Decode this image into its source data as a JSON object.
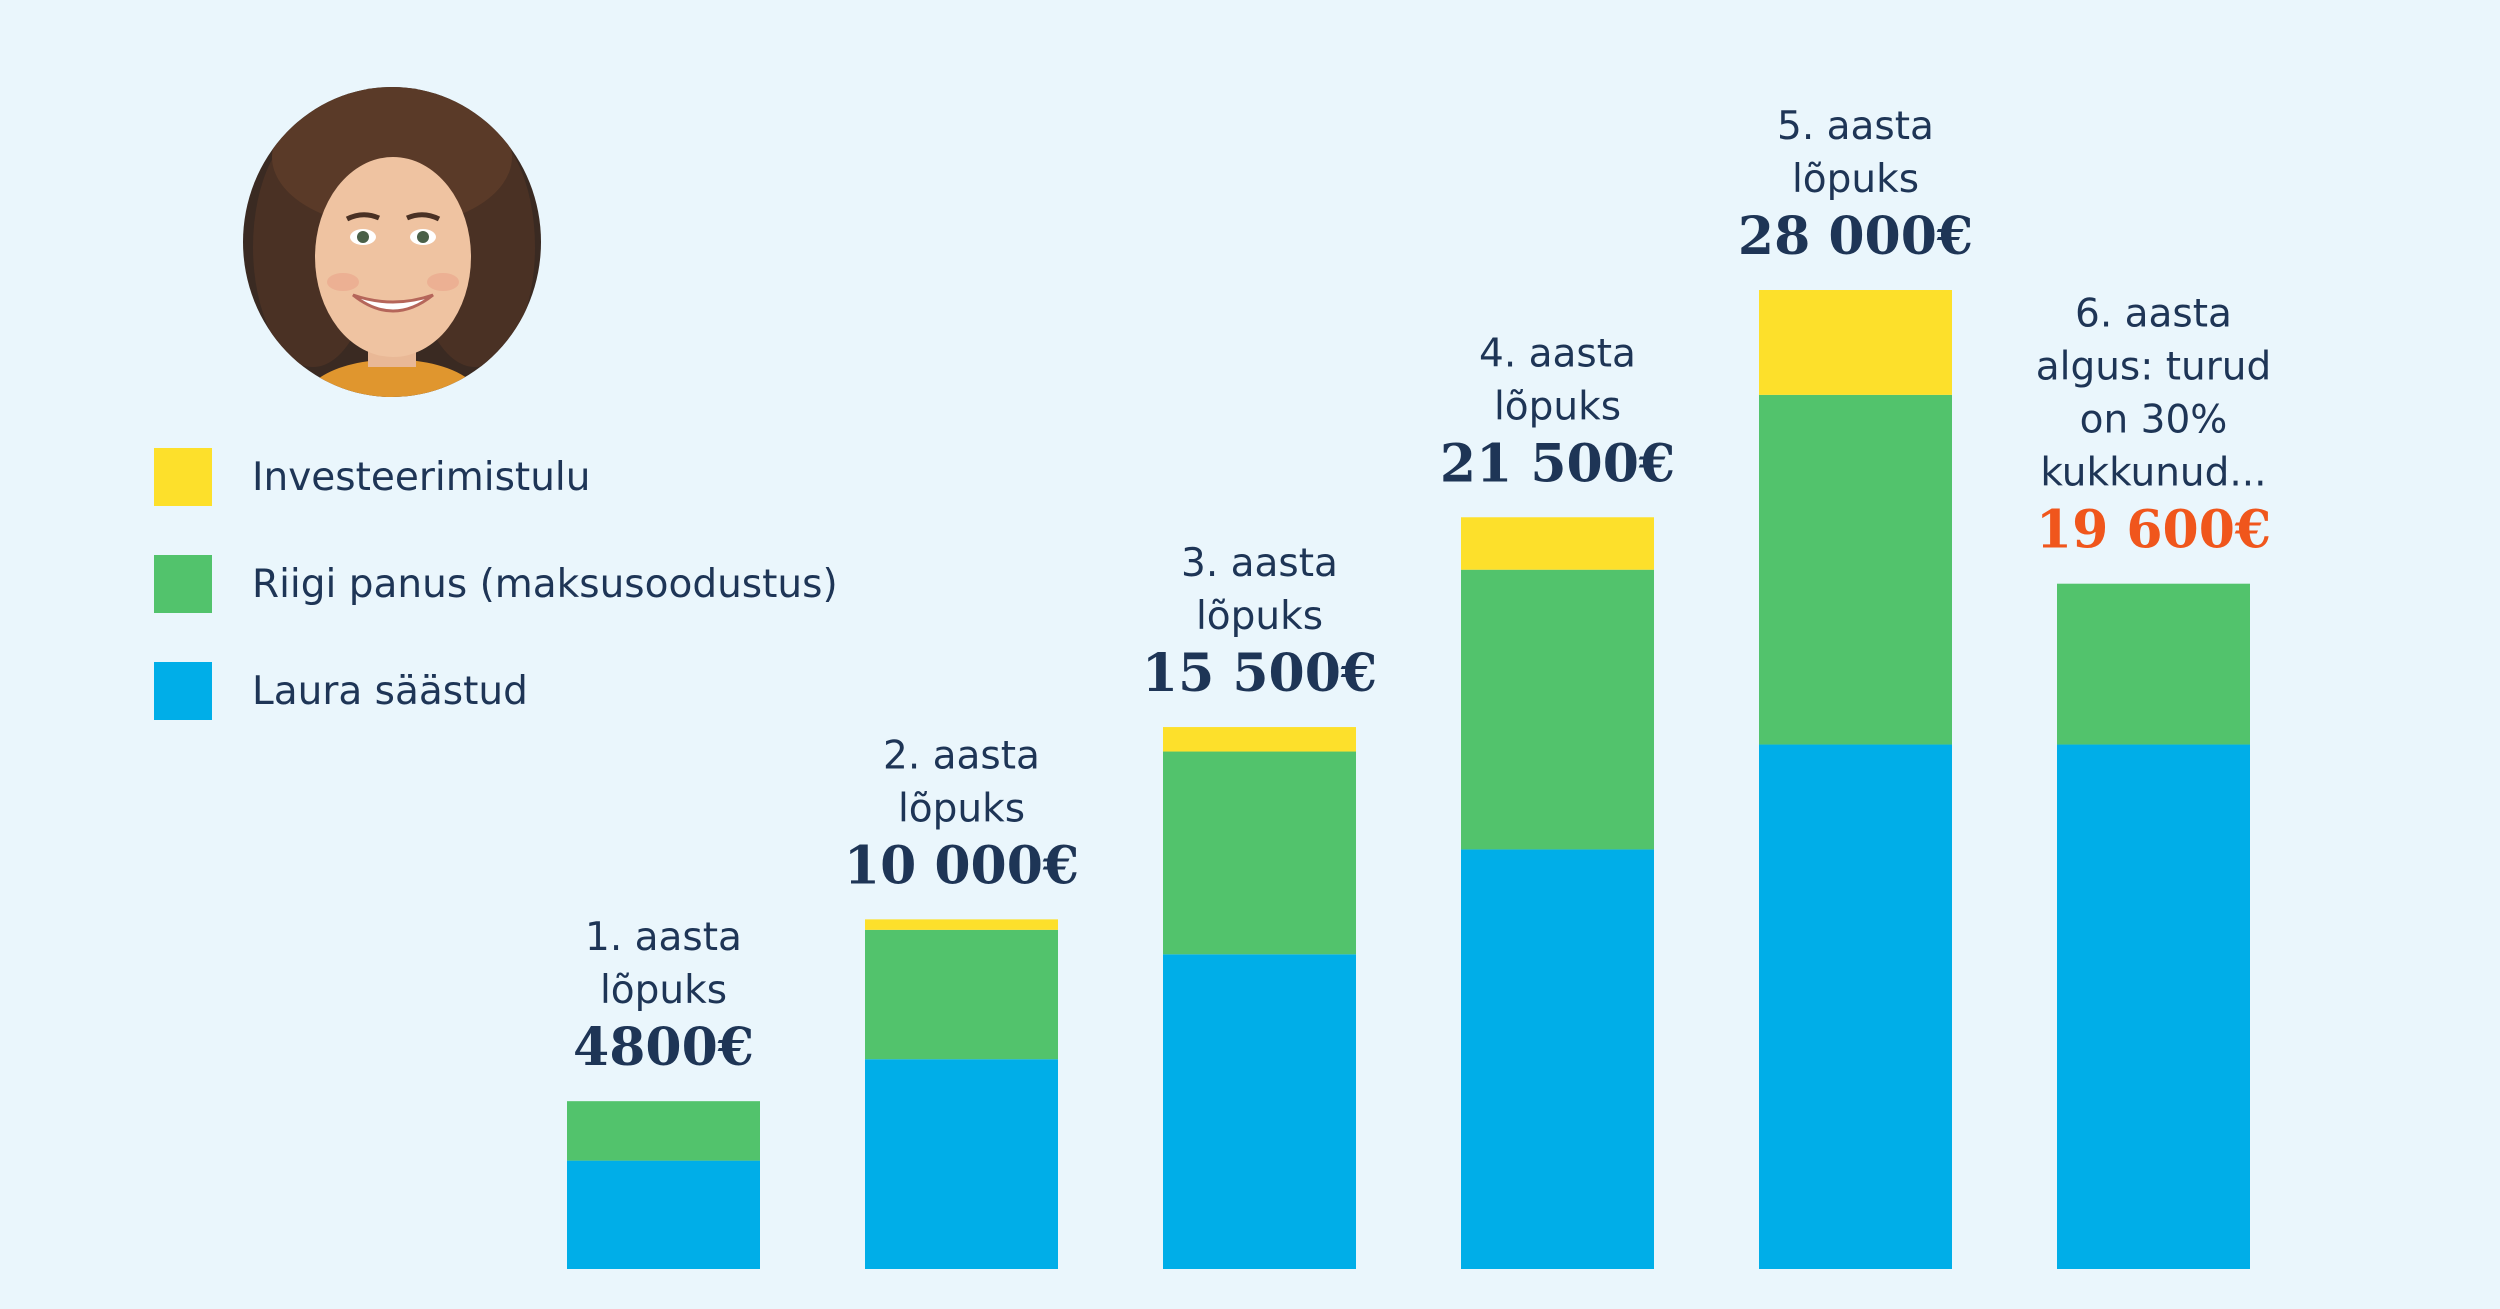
{
  "colors": {
    "background": "#eaf6fc",
    "savings": "#00aee8",
    "state": "#52c36c",
    "investment": "#fde02b",
    "text": "#1e3556",
    "highlight": "#f0561c"
  },
  "avatar": {
    "icon": "woman-portrait-photo"
  },
  "legend": {
    "items": [
      {
        "label": "Investeerimistulu",
        "color": "#fde02b"
      },
      {
        "label": "Riigi panus (maksusoodustus)",
        "color": "#52c36c"
      },
      {
        "label": "Laura säästud",
        "color": "#00aee8"
      }
    ]
  },
  "chart_data": {
    "type": "bar",
    "stacked": true,
    "categories": [
      "1. aasta lõpuks",
      "2. aasta lõpuks",
      "3. aasta lõpuks",
      "4. aasta lõpuks",
      "5. aasta lõpuks",
      "6. aasta algus: turud on 30% kukkunud..."
    ],
    "label_lines": [
      [
        "1. aasta",
        "lõpuks"
      ],
      [
        "2. aasta",
        "lõpuks"
      ],
      [
        "3. aasta",
        "lõpuks"
      ],
      [
        "4. aasta",
        "lõpuks"
      ],
      [
        "5. aasta",
        "lõpuks"
      ],
      [
        "6. aasta",
        "algus: turud",
        "on 30%",
        "kukkunud..."
      ]
    ],
    "totals": [
      "4800€",
      "10 000€",
      "15 500€",
      "21 500€",
      "28 000€",
      "19 600€"
    ],
    "total_values": [
      4800,
      10000,
      15500,
      21500,
      28000,
      19600
    ],
    "highlighted_index": 5,
    "series": [
      {
        "name": "Laura säästud",
        "values": [
          3100,
          6000,
          9000,
          12000,
          15000,
          15000
        ]
      },
      {
        "name": "Riigi panus (maksusoodustus)",
        "values": [
          1700,
          3700,
          5800,
          8000,
          10000,
          4600
        ]
      },
      {
        "name": "Investeerimistulu",
        "values": [
          0,
          300,
          700,
          1500,
          3000,
          0
        ]
      }
    ],
    "ylim": [
      0,
      28000
    ],
    "grid": false
  }
}
